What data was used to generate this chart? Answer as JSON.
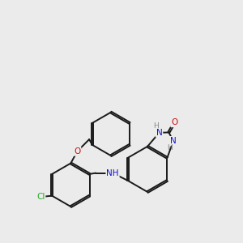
{
  "background_color": "#ebebeb",
  "bond_color": "#1a1a1a",
  "bond_width": 1.4,
  "dbo": 0.038,
  "atom_colors": {
    "N": "#1111cc",
    "O": "#cc1111",
    "Cl": "#22aa22",
    "H": "#888888"
  },
  "figsize": [
    3.0,
    3.0
  ],
  "dpi": 100
}
